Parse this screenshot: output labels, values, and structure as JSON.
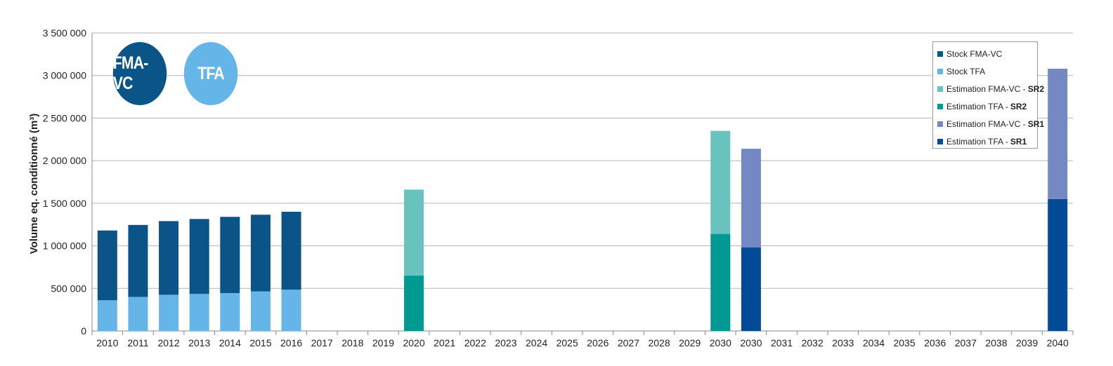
{
  "badges": [
    {
      "label": "FMA-VC",
      "color": "#0a5488"
    },
    {
      "label": "TFA",
      "color": "#66b5e8"
    }
  ],
  "legend": [
    {
      "text": "Stock FMA-VC",
      "bold": "",
      "color": "#0a5488"
    },
    {
      "text": "Stock TFA",
      "bold": "",
      "color": "#66b5e8"
    },
    {
      "text": "Estimation FMA-VC -",
      "bold": "SR2",
      "color": "#68c3bf"
    },
    {
      "text": "Estimation TFA -",
      "bold": "SR2",
      "color": "#009a92"
    },
    {
      "text": "Estimation FMA-VC -",
      "bold": "SR1",
      "color": "#7489c4"
    },
    {
      "text": "Estimation TFA -",
      "bold": "SR1",
      "color": "#004a97"
    }
  ],
  "chart_data": {
    "type": "bar",
    "stacked": true,
    "ylabel": "Volume eq. conditionné (m³)",
    "ylim": [
      0,
      3500000
    ],
    "yticks": [
      0,
      500000,
      1000000,
      1500000,
      2000000,
      2500000,
      3000000,
      3500000
    ],
    "ytick_labels": [
      "0",
      "500 000",
      "1 000 000",
      "1 500 000",
      "2 000 000",
      "2 500 000",
      "3 000 000",
      "3 500 000"
    ],
    "grid": true,
    "legend_position": "top-right",
    "categories": [
      "2010",
      "2011",
      "2012",
      "2013",
      "2014",
      "2015",
      "2016",
      "2017",
      "2018",
      "2019",
      "2020",
      "2021",
      "2022",
      "2023",
      "2024",
      "2025",
      "2026",
      "2027",
      "2028",
      "2029",
      "2030",
      "2030",
      "2031",
      "2032",
      "2033",
      "2034",
      "2035",
      "2036",
      "2037",
      "2038",
      "2039",
      "2040"
    ],
    "series": [
      {
        "name": "Stock TFA",
        "color": "#66b5e8",
        "values": [
          360000,
          400000,
          425000,
          435000,
          445000,
          465000,
          485000,
          null,
          null,
          null,
          null,
          null,
          null,
          null,
          null,
          null,
          null,
          null,
          null,
          null,
          null,
          null,
          null,
          null,
          null,
          null,
          null,
          null,
          null,
          null,
          null,
          null
        ]
      },
      {
        "name": "Stock FMA-VC",
        "color": "#0a5488",
        "values": [
          820000,
          845000,
          865000,
          880000,
          895000,
          900000,
          915000,
          null,
          null,
          null,
          null,
          null,
          null,
          null,
          null,
          null,
          null,
          null,
          null,
          null,
          null,
          null,
          null,
          null,
          null,
          null,
          null,
          null,
          null,
          null,
          null,
          null
        ]
      },
      {
        "name": "Estimation TFA - SR2",
        "color": "#009a92",
        "values": [
          null,
          null,
          null,
          null,
          null,
          null,
          null,
          null,
          null,
          null,
          650000,
          null,
          null,
          null,
          null,
          null,
          null,
          null,
          null,
          null,
          1140000,
          null,
          null,
          null,
          null,
          null,
          null,
          null,
          null,
          null,
          null,
          null
        ]
      },
      {
        "name": "Estimation FMA-VC - SR2",
        "color": "#68c3bf",
        "values": [
          null,
          null,
          null,
          null,
          null,
          null,
          null,
          null,
          null,
          null,
          1010000,
          null,
          null,
          null,
          null,
          null,
          null,
          null,
          null,
          null,
          1210000,
          null,
          null,
          null,
          null,
          null,
          null,
          null,
          null,
          null,
          null,
          null
        ]
      },
      {
        "name": "Estimation TFA - SR1",
        "color": "#004a97",
        "values": [
          null,
          null,
          null,
          null,
          null,
          null,
          null,
          null,
          null,
          null,
          null,
          null,
          null,
          null,
          null,
          null,
          null,
          null,
          null,
          null,
          null,
          980000,
          null,
          null,
          null,
          null,
          null,
          null,
          null,
          null,
          null,
          1550000
        ]
      },
      {
        "name": "Estimation FMA-VC - SR1",
        "color": "#7489c4",
        "values": [
          null,
          null,
          null,
          null,
          null,
          null,
          null,
          null,
          null,
          null,
          null,
          null,
          null,
          null,
          null,
          null,
          null,
          null,
          null,
          null,
          null,
          1160000,
          null,
          null,
          null,
          null,
          null,
          null,
          null,
          null,
          null,
          1530000
        ]
      }
    ]
  }
}
